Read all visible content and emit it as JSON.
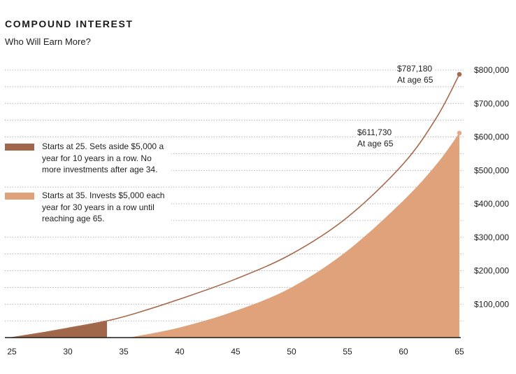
{
  "header": {
    "title": "COMPOUND INTEREST",
    "subtitle": "Who Will Earn More?"
  },
  "legend": [
    {
      "label": "Starts at 25. Sets aside $5,000 a year for 10 years in a row. No more investments after age 34.",
      "color": "#a0674a"
    },
    {
      "label": "Starts at 35. Invests $5,000 each year for 30 years in a row until reaching age 65.",
      "color": "#dfa27b"
    }
  ],
  "annotations": {
    "early": {
      "value": "$787,180",
      "note": "At age 65"
    },
    "late": {
      "value": "$611,730",
      "note": "At age 65"
    }
  },
  "colors": {
    "early_fill": "#a0674a",
    "early_line": "#a86a4c",
    "late_fill": "#dfa27b",
    "late_marker": "#e3ab86",
    "grid": "#8a8a8a",
    "axis": "#1a1a1a"
  },
  "chart_data": {
    "type": "area",
    "xlim": [
      25,
      65
    ],
    "ylim": [
      0,
      800000
    ],
    "x_ticks": [
      25,
      30,
      35,
      40,
      45,
      50,
      55,
      60,
      65
    ],
    "y_ticks": [
      100000,
      200000,
      300000,
      400000,
      500000,
      600000,
      700000,
      800000
    ],
    "y_tick_labels": [
      "$100,000",
      "$200,000",
      "$300,000",
      "$400,000",
      "$500,000",
      "$600,000",
      "$700,000",
      "$800,000"
    ],
    "grid": "dotted horizontal",
    "legend_position": "left",
    "series": [
      {
        "x": [
          25,
          28,
          30,
          33.5,
          36,
          40,
          45,
          50,
          55,
          60,
          63,
          65
        ],
        "y": [
          0,
          16000,
          28000,
          50000,
          72000,
          115000,
          175000,
          250000,
          360000,
          520000,
          660000,
          787180
        ]
      },
      {
        "x": [
          35.5,
          40,
          45,
          50,
          55,
          60,
          63,
          65
        ],
        "y": [
          0,
          30000,
          80000,
          150000,
          260000,
          410000,
          520000,
          611730
        ]
      }
    ]
  }
}
